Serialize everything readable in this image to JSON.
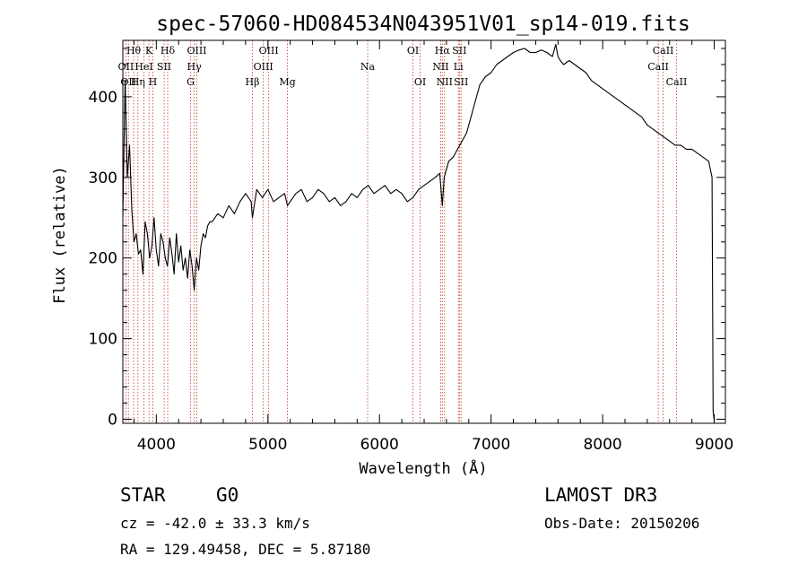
{
  "chart_data": {
    "type": "line",
    "title": "spec-57060-HD084534N043951V01_sp14-019.fits",
    "xlabel": "Wavelength (Å)",
    "ylabel": "Flux (relative)",
    "xlim": [
      3700,
      9100
    ],
    "ylim": [
      -5,
      470
    ],
    "xticks": [
      "4000",
      "5000",
      "6000",
      "7000",
      "8000",
      "9000"
    ],
    "yticks": [
      "0",
      "100",
      "200",
      "300",
      "400"
    ],
    "series": [
      {
        "name": "spectrum",
        "x": [
          3700,
          3720,
          3740,
          3760,
          3780,
          3800,
          3820,
          3840,
          3860,
          3880,
          3900,
          3920,
          3940,
          3960,
          3980,
          4000,
          4020,
          4040,
          4060,
          4080,
          4100,
          4120,
          4140,
          4160,
          4180,
          4200,
          4220,
          4240,
          4260,
          4280,
          4300,
          4320,
          4340,
          4360,
          4380,
          4400,
          4420,
          4440,
          4460,
          4480,
          4500,
          4550,
          4600,
          4650,
          4700,
          4750,
          4800,
          4850,
          4861,
          4900,
          4950,
          5000,
          5050,
          5100,
          5150,
          5175,
          5200,
          5250,
          5300,
          5350,
          5400,
          5450,
          5500,
          5550,
          5600,
          5650,
          5700,
          5750,
          5800,
          5850,
          5900,
          5950,
          6000,
          6050,
          6100,
          6150,
          6200,
          6250,
          6300,
          6350,
          6400,
          6450,
          6500,
          6540,
          6563,
          6580,
          6620,
          6660,
          6700,
          6740,
          6780,
          6820,
          6860,
          6900,
          6950,
          7000,
          7050,
          7100,
          7150,
          7200,
          7250,
          7300,
          7350,
          7400,
          7450,
          7500,
          7550,
          7580,
          7600,
          7620,
          7650,
          7700,
          7750,
          7800,
          7850,
          7900,
          7950,
          8000,
          8050,
          8100,
          8150,
          8200,
          8250,
          8300,
          8350,
          8400,
          8450,
          8500,
          8550,
          8600,
          8650,
          8700,
          8750,
          8800,
          8850,
          8900,
          8950,
          8980,
          8990,
          9000
        ],
        "y": [
          250,
          420,
          300,
          340,
          260,
          220,
          230,
          205,
          210,
          180,
          245,
          230,
          200,
          215,
          250,
          210,
          190,
          230,
          220,
          200,
          190,
          225,
          205,
          180,
          230,
          195,
          215,
          185,
          200,
          175,
          210,
          190,
          160,
          200,
          185,
          215,
          230,
          225,
          240,
          245,
          245,
          255,
          250,
          265,
          255,
          270,
          280,
          270,
          250,
          285,
          275,
          285,
          270,
          275,
          280,
          265,
          270,
          280,
          285,
          270,
          275,
          285,
          280,
          270,
          275,
          265,
          270,
          280,
          275,
          285,
          290,
          280,
          285,
          290,
          280,
          285,
          280,
          270,
          275,
          285,
          290,
          295,
          300,
          305,
          265,
          300,
          320,
          325,
          335,
          345,
          355,
          375,
          395,
          415,
          425,
          430,
          440,
          445,
          450,
          455,
          458,
          460,
          455,
          455,
          458,
          455,
          450,
          465,
          450,
          445,
          440,
          445,
          440,
          435,
          430,
          420,
          415,
          410,
          405,
          400,
          395,
          390,
          385,
          380,
          375,
          365,
          360,
          355,
          350,
          345,
          340,
          340,
          335,
          335,
          330,
          325,
          320,
          300,
          10,
          -3
        ]
      }
    ],
    "emission_lines": [
      {
        "wavelength": 3727,
        "label": "OII",
        "row": 1
      },
      {
        "wavelength": 3750,
        "label": "OII",
        "row": 2
      },
      {
        "wavelength": 3797,
        "label": "Hθ",
        "row": 0
      },
      {
        "wavelength": 3835,
        "label": "Hη",
        "row": 2
      },
      {
        "wavelength": 3889,
        "label": "HeI",
        "row": 1
      },
      {
        "wavelength": 3934,
        "label": "K",
        "row": 0
      },
      {
        "wavelength": 3969,
        "label": "H",
        "row": 2
      },
      {
        "wavelength": 4070,
        "label": "SII",
        "row": 1
      },
      {
        "wavelength": 4102,
        "label": "Hδ",
        "row": 0
      },
      {
        "wavelength": 4307,
        "label": "G",
        "row": 2
      },
      {
        "wavelength": 4340,
        "label": "Hγ",
        "row": 1
      },
      {
        "wavelength": 4363,
        "label": "OIII",
        "row": 0
      },
      {
        "wavelength": 4861,
        "label": "Hβ",
        "row": 2
      },
      {
        "wavelength": 4959,
        "label": "OIII",
        "row": 1
      },
      {
        "wavelength": 5007,
        "label": "OIII",
        "row": 0
      },
      {
        "wavelength": 5175,
        "label": "Mg",
        "row": 2
      },
      {
        "wavelength": 5894,
        "label": "Na",
        "row": 1
      },
      {
        "wavelength": 6300,
        "label": "OI",
        "row": 0
      },
      {
        "wavelength": 6364,
        "label": "OI",
        "row": 2
      },
      {
        "wavelength": 6548,
        "label": "NII",
        "row": 1
      },
      {
        "wavelength": 6563,
        "label": "Hα",
        "row": 0
      },
      {
        "wavelength": 6583,
        "label": "NII",
        "row": 2
      },
      {
        "wavelength": 6707,
        "label": "Li",
        "row": 1
      },
      {
        "wavelength": 6716,
        "label": "SII",
        "row": 0
      },
      {
        "wavelength": 6731,
        "label": "SII",
        "row": 2
      },
      {
        "wavelength": 8498,
        "label": "CaII",
        "row": 1
      },
      {
        "wavelength": 8542,
        "label": "CaII",
        "row": 0
      },
      {
        "wavelength": 8662,
        "label": "CaII",
        "row": 2
      }
    ]
  },
  "info": {
    "object_class": "STAR",
    "subclass": "G0",
    "survey": "LAMOST DR3",
    "redshift": "cz = -42.0 ± 33.3 km/s",
    "obs_date": "Obs-Date: 20150206",
    "coords": "RA = 129.49458, DEC =   5.87180"
  },
  "colors": {
    "line_marker": "#c0392b",
    "spectrum": "#000000",
    "axes": "#000000"
  }
}
